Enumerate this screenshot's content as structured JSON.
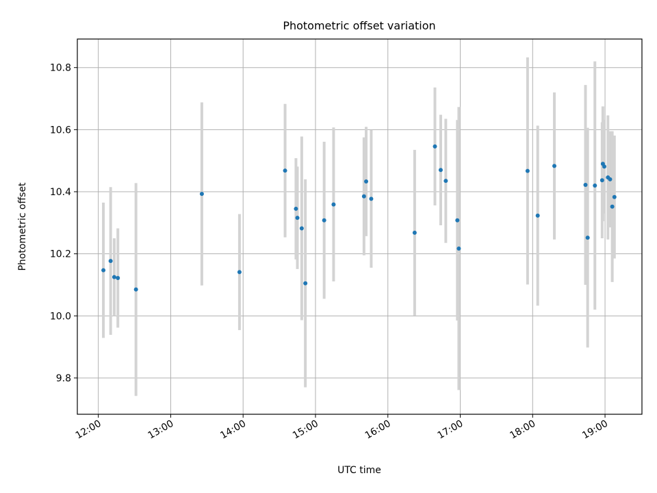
{
  "chart_data": {
    "type": "scatter",
    "title": "Photometric offset variation",
    "xlabel": "UTC time",
    "ylabel": "Photometric offset",
    "x_unit": "hours UTC",
    "xlim": [
      11.71,
      19.51
    ],
    "ylim": [
      9.683,
      10.892
    ],
    "x_ticks": [
      12,
      13,
      14,
      15,
      16,
      17,
      18,
      19
    ],
    "x_tick_labels": [
      "12:00",
      "13:00",
      "14:00",
      "15:00",
      "16:00",
      "17:00",
      "18:00",
      "19:00"
    ],
    "y_ticks": [
      9.8,
      10.0,
      10.2,
      10.4,
      10.6,
      10.8
    ],
    "y_tick_labels": [
      "9.8",
      "10.0",
      "10.2",
      "10.4",
      "10.6",
      "10.8"
    ],
    "grid": true,
    "colors": {
      "point": "#1f77b4",
      "errorbar": "#d3d3d3",
      "grid": "#b0b0b0"
    },
    "points": [
      {
        "x": 12.07,
        "y": 10.147,
        "err": 0.218
      },
      {
        "x": 12.17,
        "y": 10.177,
        "err": 0.238
      },
      {
        "x": 12.22,
        "y": 10.125,
        "err": 0.125
      },
      {
        "x": 12.27,
        "y": 10.122,
        "err": 0.16
      },
      {
        "x": 12.52,
        "y": 10.085,
        "err": 0.343
      },
      {
        "x": 13.43,
        "y": 10.393,
        "err": 0.295
      },
      {
        "x": 13.95,
        "y": 10.141,
        "err": 0.187
      },
      {
        "x": 14.58,
        "y": 10.468,
        "err": 0.215
      },
      {
        "x": 14.73,
        "y": 10.345,
        "err": 0.163
      },
      {
        "x": 14.75,
        "y": 10.316,
        "err": 0.165
      },
      {
        "x": 14.81,
        "y": 10.282,
        "err": 0.296
      },
      {
        "x": 14.86,
        "y": 10.105,
        "err": 0.335
      },
      {
        "x": 15.12,
        "y": 10.308,
        "err": 0.253
      },
      {
        "x": 15.25,
        "y": 10.359,
        "err": 0.248
      },
      {
        "x": 15.67,
        "y": 10.385,
        "err": 0.19
      },
      {
        "x": 15.7,
        "y": 10.433,
        "err": 0.176
      },
      {
        "x": 15.77,
        "y": 10.377,
        "err": 0.222
      },
      {
        "x": 16.37,
        "y": 10.268,
        "err": 0.267
      },
      {
        "x": 16.65,
        "y": 10.546,
        "err": 0.19
      },
      {
        "x": 16.73,
        "y": 10.47,
        "err": 0.178
      },
      {
        "x": 16.8,
        "y": 10.435,
        "err": 0.2
      },
      {
        "x": 16.96,
        "y": 10.308,
        "err": 0.323
      },
      {
        "x": 16.98,
        "y": 10.217,
        "err": 0.456
      },
      {
        "x": 17.93,
        "y": 10.467,
        "err": 0.366
      },
      {
        "x": 18.07,
        "y": 10.323,
        "err": 0.29
      },
      {
        "x": 18.3,
        "y": 10.483,
        "err": 0.237
      },
      {
        "x": 18.73,
        "y": 10.422,
        "err": 0.322
      },
      {
        "x": 18.76,
        "y": 10.252,
        "err": 0.354
      },
      {
        "x": 18.86,
        "y": 10.42,
        "err": 0.4
      },
      {
        "x": 18.96,
        "y": 10.437,
        "err": 0.187
      },
      {
        "x": 18.97,
        "y": 10.49,
        "err": 0.185
      },
      {
        "x": 18.99,
        "y": 10.481,
        "err": 0.151
      },
      {
        "x": 19.04,
        "y": 10.446,
        "err": 0.2
      },
      {
        "x": 19.07,
        "y": 10.44,
        "err": 0.155
      },
      {
        "x": 19.1,
        "y": 10.352,
        "err": 0.243
      },
      {
        "x": 19.13,
        "y": 10.383,
        "err": 0.198
      }
    ]
  }
}
